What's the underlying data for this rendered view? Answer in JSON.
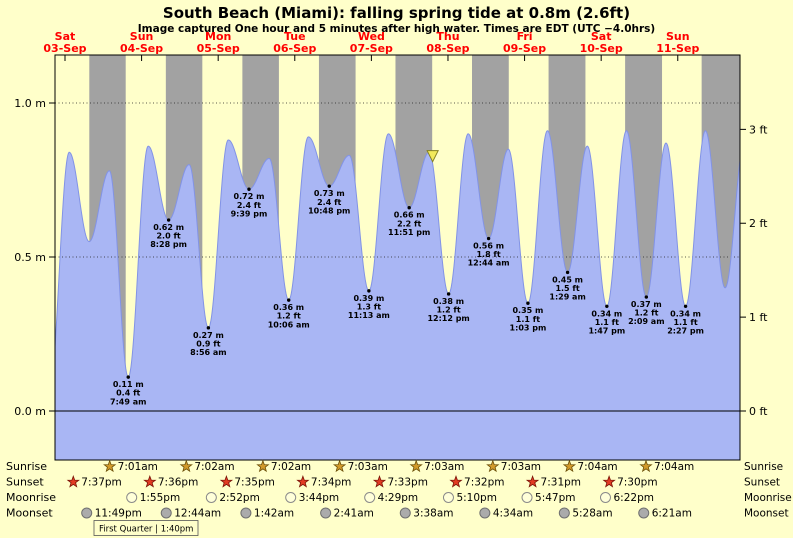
{
  "title": "South Beach (Miami): falling spring tide at 0.8m (2.6ft)",
  "subtitle": "Image captured One hour and 5 minutes after high water. Times are EDT (UTC −4.0hrs)",
  "colors": {
    "background": "#ffffca",
    "night_band": "#a2a2a2",
    "tide_fill": "#a9b6f4",
    "tide_stroke": "#8293e6",
    "day_label": "#ff0000",
    "sunrise_star_fill": "#d29a2a",
    "sunrise_star_stroke": "#6b4e07",
    "sunset_star_fill": "#e23b22",
    "sunset_star_stroke": "#7a1408",
    "moonrise_fill": "#ffffd9",
    "moonrise_stroke": "#8a8a8a",
    "moonset_fill": "#ababab",
    "moonset_stroke": "#6f6f6f",
    "marker_fill": "#f2ea5a",
    "marker_stroke": "#85801f"
  },
  "chart_data": {
    "type": "area",
    "title": "South Beach (Miami): falling spring tide at 0.8m (2.6ft)",
    "x_start_hours": 8.87,
    "x_end_hours": 223.5,
    "ylim_m": [
      -0.159,
      1.156
    ],
    "y_ticks_m": [
      {
        "h": 0.0,
        "label": "0.0 m"
      },
      {
        "h": 0.5,
        "label": "0.5 m"
      },
      {
        "h": 1.0,
        "label": "1.0 m"
      }
    ],
    "y_ticks_ft": [
      {
        "ft": 0,
        "label": "0 ft"
      },
      {
        "ft": 1,
        "label": "1 ft"
      },
      {
        "ft": 2,
        "label": "2 ft"
      },
      {
        "ft": 3,
        "label": "3 ft"
      }
    ],
    "days": [
      {
        "weekday": "Sat",
        "date": "03-Sep"
      },
      {
        "weekday": "Sun",
        "date": "04-Sep"
      },
      {
        "weekday": "Mon",
        "date": "05-Sep"
      },
      {
        "weekday": "Tue",
        "date": "06-Sep"
      },
      {
        "weekday": "Wed",
        "date": "07-Sep"
      },
      {
        "weekday": "Thu",
        "date": "08-Sep"
      },
      {
        "weekday": "Fri",
        "date": "09-Sep"
      },
      {
        "weekday": "Sat",
        "date": "10-Sep"
      },
      {
        "weekday": "Sun",
        "date": "11-Sep"
      }
    ],
    "night_bands_hours": [
      [
        19.62,
        31.02
      ],
      [
        43.6,
        55.03
      ],
      [
        67.58,
        79.03
      ],
      [
        91.57,
        103.05
      ],
      [
        115.55,
        127.05
      ],
      [
        139.53,
        151.05
      ],
      [
        163.52,
        175.07
      ],
      [
        187.5,
        199.07
      ],
      [
        211.48,
        223.5
      ]
    ],
    "tide_extremes": [
      {
        "t": 7.0,
        "h": 0.05
      },
      {
        "t": 13.33,
        "h": 0.84
      },
      {
        "t": 19.58,
        "h": 0.55
      },
      {
        "t": 25.92,
        "h": 0.78
      },
      {
        "t": 31.82,
        "h": 0.11,
        "label": [
          "0.11 m",
          "0.4 ft",
          "7:49 am"
        ]
      },
      {
        "t": 38.08,
        "h": 0.86
      },
      {
        "t": 44.47,
        "h": 0.62,
        "label": [
          "0.62 m",
          "2.0 ft",
          "8:28 pm"
        ]
      },
      {
        "t": 50.92,
        "h": 0.8
      },
      {
        "t": 56.93,
        "h": 0.27,
        "label": [
          "0.27 m",
          "0.9 ft",
          "8:56 am"
        ]
      },
      {
        "t": 63.17,
        "h": 0.88
      },
      {
        "t": 69.65,
        "h": 0.72,
        "label": [
          "0.72 m",
          "2.4 ft",
          "9:39 pm"
        ]
      },
      {
        "t": 76.0,
        "h": 0.82
      },
      {
        "t": 82.1,
        "h": 0.36,
        "label": [
          "0.36 m",
          "1.2 ft",
          "10:06 am"
        ]
      },
      {
        "t": 88.25,
        "h": 0.89
      },
      {
        "t": 94.8,
        "h": 0.73,
        "label": [
          "0.73 m",
          "2.4 ft",
          "10:48 pm"
        ]
      },
      {
        "t": 101.08,
        "h": 0.83
      },
      {
        "t": 107.22,
        "h": 0.39,
        "label": [
          "0.39 m",
          "1.3 ft",
          "11:13 am"
        ]
      },
      {
        "t": 113.33,
        "h": 0.9
      },
      {
        "t": 119.85,
        "h": 0.66,
        "label": [
          "0.66 m",
          "2.2 ft",
          "11:51 pm"
        ]
      },
      {
        "t": 126.08,
        "h": 0.84
      },
      {
        "t": 132.2,
        "h": 0.38,
        "label": [
          "0.38 m",
          "1.2 ft",
          "12:12 pm"
        ]
      },
      {
        "t": 138.33,
        "h": 0.9
      },
      {
        "t": 144.73,
        "h": 0.56,
        "label": [
          "0.56 m",
          "1.8 ft",
          "12:44 am"
        ]
      },
      {
        "t": 150.92,
        "h": 0.85
      },
      {
        "t": 157.05,
        "h": 0.35,
        "label": [
          "0.35 m",
          "1.1 ft",
          "1:03 pm"
        ]
      },
      {
        "t": 163.17,
        "h": 0.91
      },
      {
        "t": 169.48,
        "h": 0.45,
        "label": [
          "0.45 m",
          "1.5 ft",
          "1:29 am"
        ]
      },
      {
        "t": 175.67,
        "h": 0.86
      },
      {
        "t": 181.78,
        "h": 0.34,
        "label": [
          "0.34 m",
          "1.1 ft",
          "1:47 pm"
        ]
      },
      {
        "t": 187.92,
        "h": 0.91
      },
      {
        "t": 194.15,
        "h": 0.37,
        "label": [
          "0.37 m",
          "1.2 ft",
          "2:09 am"
        ]
      },
      {
        "t": 200.33,
        "h": 0.87
      },
      {
        "t": 206.45,
        "h": 0.34,
        "label": [
          "0.34 m",
          "1.1 ft",
          "2:27 pm"
        ]
      },
      {
        "t": 212.67,
        "h": 0.91
      },
      {
        "t": 218.83,
        "h": 0.4
      },
      {
        "t": 225.0,
        "h": 0.88
      }
    ],
    "current_marker": {
      "t_hours": 127.2
    }
  },
  "almanac": {
    "rows": [
      {
        "label": "Sunrise",
        "icon": "star",
        "events": [
          {
            "day": 1,
            "time": "7:01am"
          },
          {
            "day": 2,
            "time": "7:02am"
          },
          {
            "day": 3,
            "time": "7:02am"
          },
          {
            "day": 4,
            "time": "7:03am"
          },
          {
            "day": 5,
            "time": "7:03am"
          },
          {
            "day": 6,
            "time": "7:03am"
          },
          {
            "day": 7,
            "time": "7:04am"
          },
          {
            "day": 8,
            "time": "7:04am"
          }
        ]
      },
      {
        "label": "Sunset",
        "icon": "star",
        "events": [
          {
            "day": 0,
            "time": "7:37pm"
          },
          {
            "day": 1,
            "time": "7:36pm"
          },
          {
            "day": 2,
            "time": "7:35pm"
          },
          {
            "day": 3,
            "time": "7:34pm"
          },
          {
            "day": 4,
            "time": "7:33pm"
          },
          {
            "day": 5,
            "time": "7:32pm"
          },
          {
            "day": 6,
            "time": "7:31pm"
          },
          {
            "day": 7,
            "time": "7:30pm"
          }
        ]
      },
      {
        "label": "Moonrise",
        "icon": "moon",
        "events": [
          {
            "day": 1,
            "time": "1:55pm"
          },
          {
            "day": 2,
            "time": "2:52pm"
          },
          {
            "day": 3,
            "time": "3:44pm"
          },
          {
            "day": 4,
            "time": "4:29pm"
          },
          {
            "day": 5,
            "time": "5:10pm"
          },
          {
            "day": 6,
            "time": "5:47pm"
          },
          {
            "day": 7,
            "time": "6:22pm"
          }
        ]
      },
      {
        "label": "Moonset",
        "icon": "moon",
        "events": [
          {
            "day": 0,
            "time": "11:49pm"
          },
          {
            "day": 2,
            "time": "12:44am"
          },
          {
            "day": 3,
            "time": "1:42am"
          },
          {
            "day": 4,
            "time": "2:41am"
          },
          {
            "day": 5,
            "time": "3:38am"
          },
          {
            "day": 6,
            "time": "4:34am"
          },
          {
            "day": 7,
            "time": "5:28am"
          },
          {
            "day": 8,
            "time": "6:21am"
          }
        ]
      }
    ],
    "moon_phase_note": "First Quarter | 1:40pm"
  }
}
